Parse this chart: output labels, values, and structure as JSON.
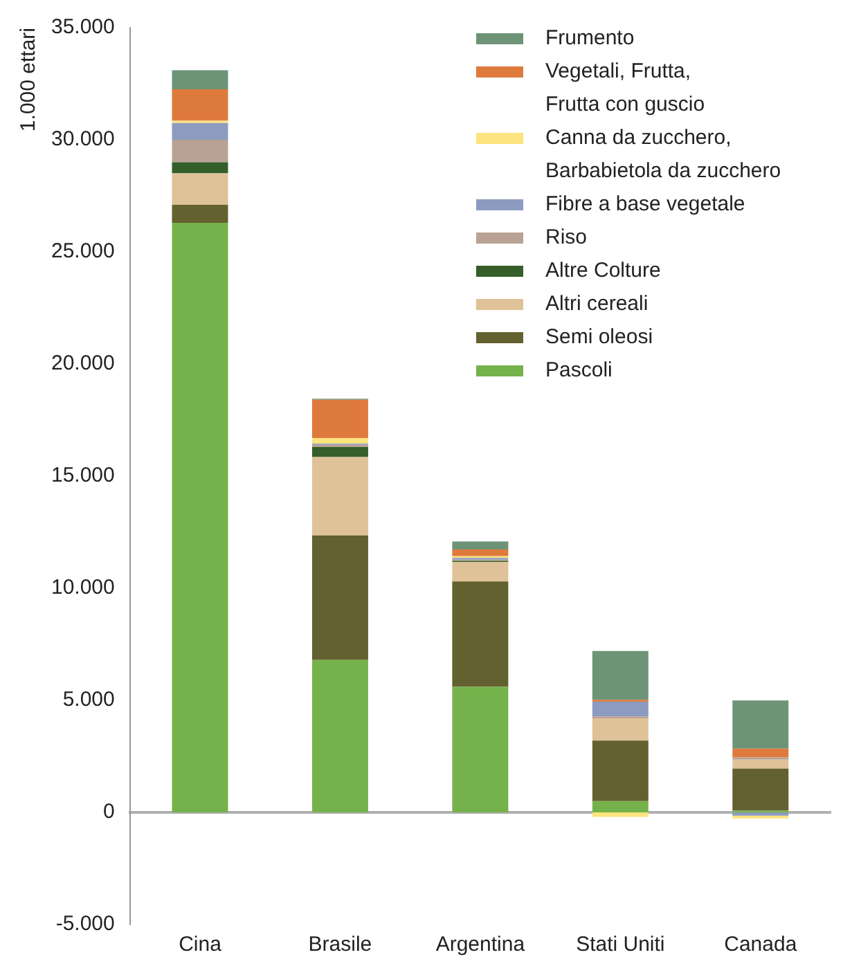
{
  "chart_data": {
    "type": "bar",
    "ylabel": "1.000 ettari",
    "categories": [
      "Cina",
      "Brasile",
      "Argentina",
      "Stati Uniti",
      "Canada"
    ],
    "stacked": true,
    "series": [
      {
        "name": "Pascoli",
        "color": "#76b24b",
        "values": [
          26300,
          6800,
          5600,
          500,
          80
        ]
      },
      {
        "name": "Semi oleosi",
        "color": "#63612f",
        "values": [
          800,
          5550,
          4700,
          2700,
          1870
        ]
      },
      {
        "name": "Altri cereali",
        "color": "#dfc297",
        "values": [
          1400,
          3500,
          870,
          1000,
          400
        ]
      },
      {
        "name": "Altre Colture",
        "color": "#355e2a",
        "values": [
          500,
          450,
          50,
          0,
          0
        ]
      },
      {
        "name": "Riso",
        "color": "#b8a293",
        "values": [
          1000,
          100,
          50,
          80,
          100
        ]
      },
      {
        "name": "Fibre a base vegetale",
        "color": "#8c9bbf",
        "values": [
          750,
          50,
          80,
          660,
          -150
        ]
      },
      {
        "name": "Canna da zucchero,\nBarbabietola da zucchero",
        "color": "#fde47f",
        "values": [
          100,
          250,
          80,
          -200,
          -120
        ]
      },
      {
        "name": "Vegetali, Frutta,\nFrutta con guscio",
        "color": "#df7a3d",
        "values": [
          1400,
          1700,
          300,
          80,
          400
        ]
      },
      {
        "name": "Frumento",
        "color": "#6d9477",
        "values": [
          850,
          50,
          350,
          2180,
          2140
        ]
      }
    ],
    "ylim": [
      -5000,
      35000
    ],
    "yticks": [
      {
        "value": -5000,
        "label": "-5.000"
      },
      {
        "value": 0,
        "label": "0"
      },
      {
        "value": 5000,
        "label": "5.000"
      },
      {
        "value": 10000,
        "label": "10.000"
      },
      {
        "value": 15000,
        "label": "15.000"
      },
      {
        "value": 20000,
        "label": "20.000"
      },
      {
        "value": 25000,
        "label": "25.000"
      },
      {
        "value": 30000,
        "label": "30.000"
      },
      {
        "value": 35000,
        "label": "35.000"
      }
    ],
    "legend": "top right"
  }
}
